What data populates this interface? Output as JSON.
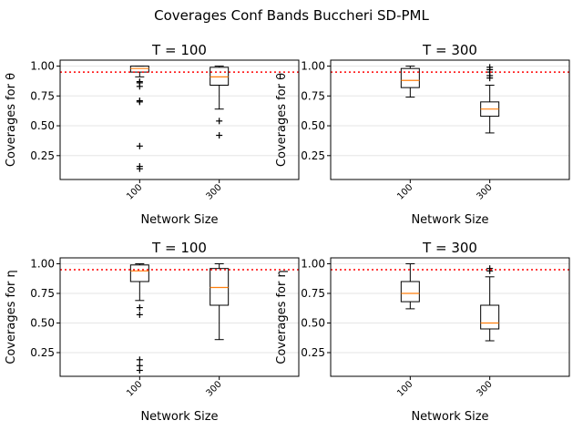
{
  "figure": {
    "suptitle": "Coverages Conf Bands Buccheri SD-PML"
  },
  "style": {
    "box_color": "#000000",
    "median_color": "#ff7f0e",
    "reference_line_color": "#ff0000",
    "grid_color": "#e6e6e6"
  },
  "chart_data": [
    {
      "type": "box",
      "title": "T = 100",
      "xlabel": "Network Size",
      "ylabel": "Coverages for θ",
      "categories": [
        "100",
        "300"
      ],
      "ylim": [
        0.05,
        1.05
      ],
      "yticks": [
        "0.25",
        "0.50",
        "0.75",
        "1.00"
      ],
      "ytick_values": [
        0.25,
        0.5,
        0.75,
        1.0
      ],
      "reference_line": 0.95,
      "grid": "horizontal",
      "boxes": [
        {
          "q1": 0.95,
          "median": 0.98,
          "q3": 1.0,
          "whisker_low": 0.91,
          "whisker_high": 1.0,
          "outliers": [
            0.87,
            0.86,
            0.83,
            0.71,
            0.7,
            0.33,
            0.16,
            0.14
          ]
        },
        {
          "q1": 0.84,
          "median": 0.91,
          "q3": 0.99,
          "whisker_low": 0.64,
          "whisker_high": 1.0,
          "outliers": [
            0.54,
            0.42
          ]
        }
      ]
    },
    {
      "type": "box",
      "title": "T = 300",
      "xlabel": "Network Size",
      "ylabel": "Coverages for θ",
      "categories": [
        "100",
        "300"
      ],
      "ylim": [
        0.05,
        1.05
      ],
      "yticks": [
        "0.25",
        "0.50",
        "0.75",
        "1.00"
      ],
      "ytick_values": [
        0.25,
        0.5,
        0.75,
        1.0
      ],
      "reference_line": 0.95,
      "grid": "horizontal",
      "boxes": [
        {
          "q1": 0.82,
          "median": 0.88,
          "q3": 0.98,
          "whisker_low": 0.74,
          "whisker_high": 1.0,
          "outliers": []
        },
        {
          "q1": 0.58,
          "median": 0.64,
          "q3": 0.7,
          "whisker_low": 0.44,
          "whisker_high": 0.84,
          "outliers": [
            0.99,
            0.97,
            0.95,
            0.92,
            0.9
          ]
        }
      ]
    },
    {
      "type": "box",
      "title": "T = 100",
      "xlabel": "Network Size",
      "ylabel": "Coverages for η",
      "categories": [
        "100",
        "300"
      ],
      "ylim": [
        0.05,
        1.05
      ],
      "yticks": [
        "0.25",
        "0.50",
        "0.75",
        "1.00"
      ],
      "ytick_values": [
        0.25,
        0.5,
        0.75,
        1.0
      ],
      "reference_line": 0.95,
      "grid": "horizontal",
      "boxes": [
        {
          "q1": 0.85,
          "median": 0.94,
          "q3": 0.99,
          "whisker_low": 0.69,
          "whisker_high": 1.0,
          "outliers": [
            0.63,
            0.57,
            0.19,
            0.14,
            0.1
          ]
        },
        {
          "q1": 0.65,
          "median": 0.8,
          "q3": 0.96,
          "whisker_low": 0.36,
          "whisker_high": 1.0,
          "outliers": []
        }
      ]
    },
    {
      "type": "box",
      "title": "T = 300",
      "xlabel": "Network Size",
      "ylabel": "Coverages for η",
      "categories": [
        "100",
        "300"
      ],
      "ylim": [
        0.05,
        1.05
      ],
      "yticks": [
        "0.25",
        "0.50",
        "0.75",
        "1.00"
      ],
      "ytick_values": [
        0.25,
        0.5,
        0.75,
        1.0
      ],
      "reference_line": 0.95,
      "grid": "horizontal",
      "boxes": [
        {
          "q1": 0.68,
          "median": 0.75,
          "q3": 0.85,
          "whisker_low": 0.62,
          "whisker_high": 1.0,
          "outliers": []
        },
        {
          "q1": 0.45,
          "median": 0.5,
          "q3": 0.65,
          "whisker_low": 0.35,
          "whisker_high": 0.89,
          "outliers": [
            0.96,
            0.94
          ]
        }
      ]
    }
  ]
}
